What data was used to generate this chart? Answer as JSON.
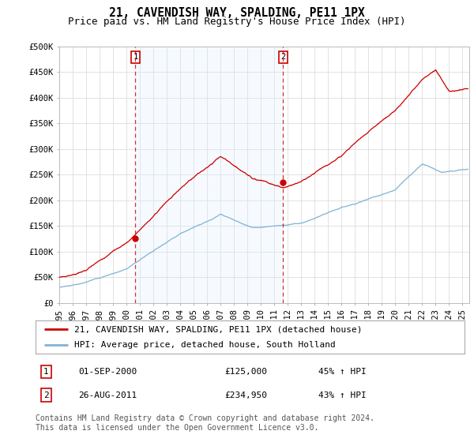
{
  "title": "21, CAVENDISH WAY, SPALDING, PE11 1PX",
  "subtitle": "Price paid vs. HM Land Registry's House Price Index (HPI)",
  "ylabel_ticks": [
    "£0",
    "£50K",
    "£100K",
    "£150K",
    "£200K",
    "£250K",
    "£300K",
    "£350K",
    "£400K",
    "£450K",
    "£500K"
  ],
  "ylim": [
    0,
    500000
  ],
  "xlim_start": 1995.0,
  "xlim_end": 2025.5,
  "purchase1_year": 2000.67,
  "purchase1_price": 125000,
  "purchase1_label": "1",
  "purchase2_year": 2011.65,
  "purchase2_price": 234950,
  "purchase2_label": "2",
  "line_color_hpi": "#7fb3d3",
  "line_color_property": "#cc0000",
  "marker_color": "#cc0000",
  "vline_color": "#cc0000",
  "shade_color": "#ddeeff",
  "grid_color": "#dddddd",
  "bg_color": "#ffffff",
  "legend_line1": "21, CAVENDISH WAY, SPALDING, PE11 1PX (detached house)",
  "legend_line2": "HPI: Average price, detached house, South Holland",
  "table_row1": [
    "1",
    "01-SEP-2000",
    "£125,000",
    "45% ↑ HPI"
  ],
  "table_row2": [
    "2",
    "26-AUG-2011",
    "£234,950",
    "43% ↑ HPI"
  ],
  "footer": "Contains HM Land Registry data © Crown copyright and database right 2024.\nThis data is licensed under the Open Government Licence v3.0.",
  "title_fontsize": 10.5,
  "subtitle_fontsize": 9,
  "tick_fontsize": 7.5,
  "legend_fontsize": 8,
  "table_fontsize": 8,
  "footer_fontsize": 7
}
